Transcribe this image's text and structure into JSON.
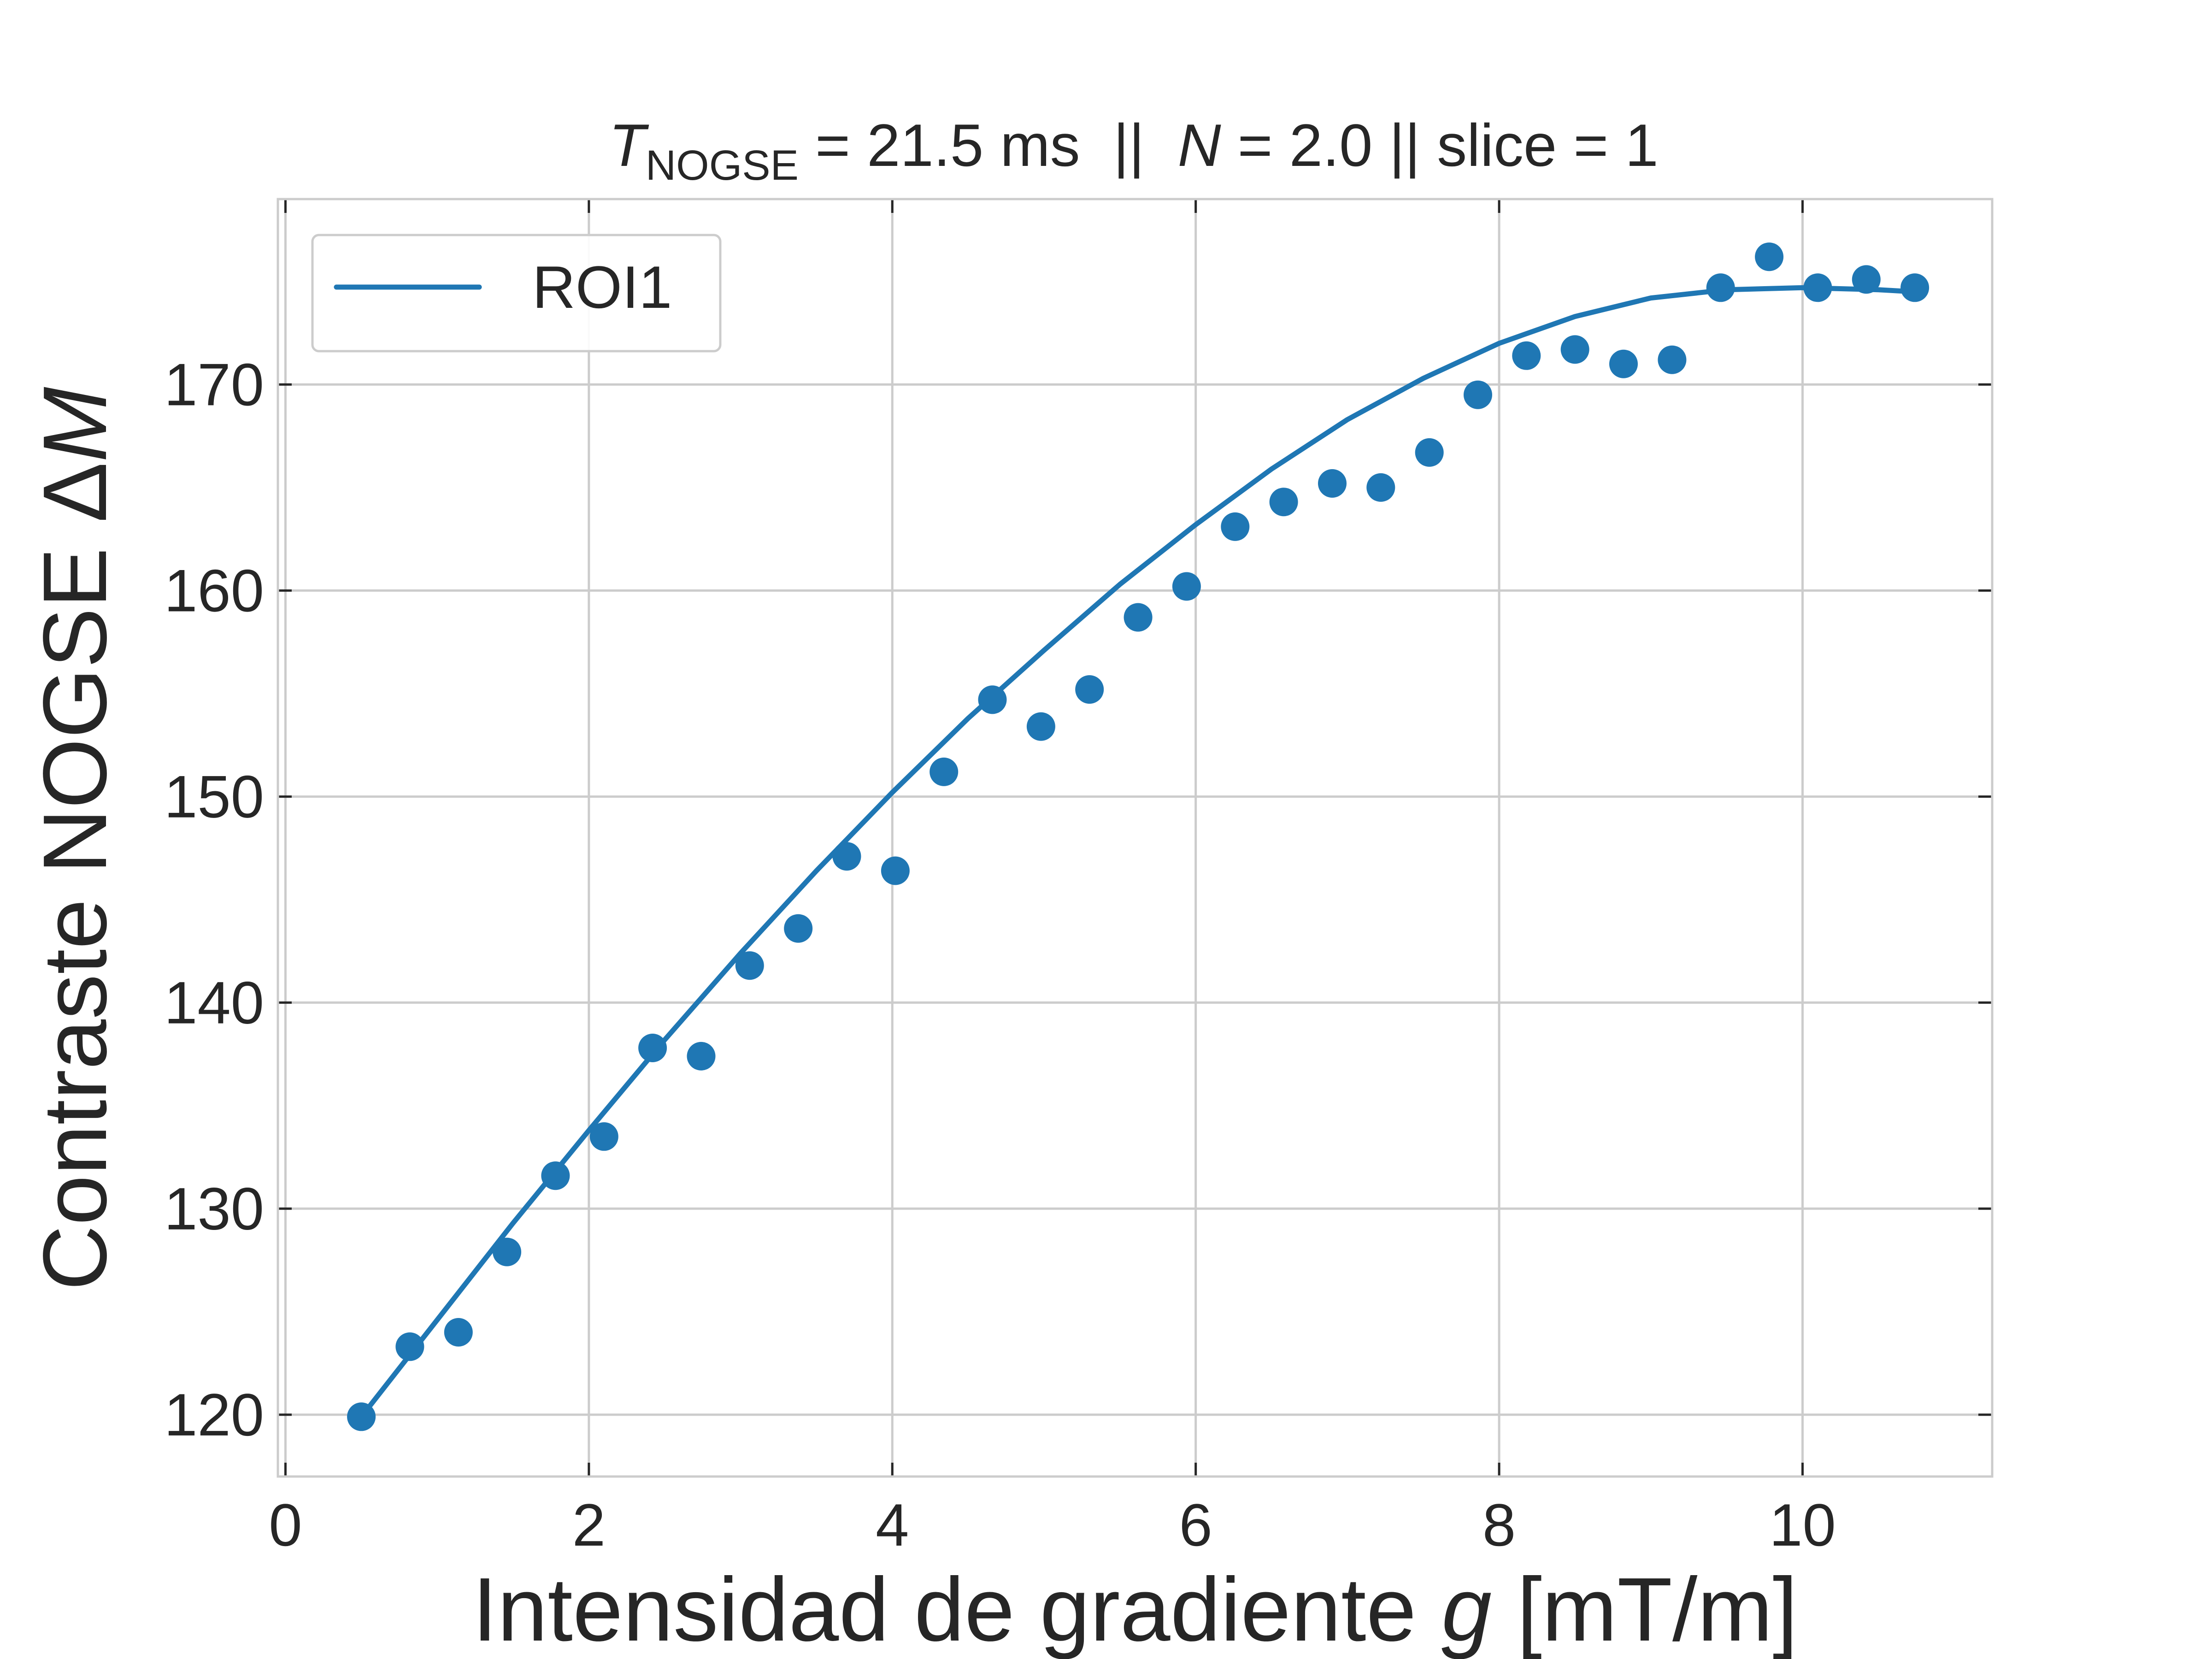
{
  "chart_data": {
    "type": "scatter",
    "title": {
      "t_symbol": "T",
      "t_subscript": "NOGSE",
      "t_rest": " = 21.5 ms  ||  ",
      "n_symbol": "N",
      "n_rest": " = 2.0 || slice = 1"
    },
    "xlabel": {
      "text": "Intensidad de gradiente ",
      "symbol": "g",
      "unit": " [mT/m]"
    },
    "ylabel": {
      "text": "Contraste NOGSE Δ",
      "symbol": "M"
    },
    "xlim": [
      -0.05,
      11.25
    ],
    "ylim": [
      117.0,
      179.0
    ],
    "x_ticks": [
      0,
      2,
      4,
      6,
      8,
      10
    ],
    "x_tick_labels": [
      "0",
      "2",
      "4",
      "6",
      "8",
      "10"
    ],
    "y_ticks": [
      120,
      130,
      140,
      150,
      160,
      170
    ],
    "y_tick_labels": [
      "120",
      "130",
      "140",
      "150",
      "160",
      "170"
    ],
    "grid": true,
    "legend": {
      "placement": "top-left",
      "entries": [
        "ROI1"
      ]
    },
    "series": [
      {
        "name": "ROI1",
        "color": "#1f77b4",
        "points": {
          "x": [
            0.5,
            0.82,
            1.14,
            1.46,
            1.78,
            2.1,
            2.42,
            2.74,
            3.06,
            3.38,
            3.7,
            4.02,
            4.34,
            4.66,
            4.98,
            5.3,
            5.62,
            5.94,
            6.26,
            6.58,
            6.9,
            7.22,
            7.54,
            7.86,
            8.18,
            8.5,
            8.82,
            9.14,
            9.46,
            9.78,
            10.1,
            10.42,
            10.74
          ],
          "y": [
            119.9,
            123.3,
            124.0,
            127.9,
            131.6,
            133.5,
            137.8,
            137.4,
            141.8,
            143.6,
            147.1,
            146.4,
            151.2,
            154.7,
            153.4,
            155.2,
            158.7,
            160.2,
            163.1,
            164.3,
            165.2,
            165.0,
            166.7,
            169.5,
            171.4,
            171.7,
            171.0,
            171.2,
            174.7,
            176.2,
            174.7,
            175.1,
            174.7
          ]
        },
        "fit": {
          "x": [
            0.5,
            1.0,
            1.5,
            2.0,
            2.5,
            3.0,
            3.5,
            4.0,
            4.5,
            5.0,
            5.5,
            6.0,
            6.5,
            7.0,
            7.5,
            8.0,
            8.5,
            9.0,
            9.5,
            10.0,
            10.5,
            10.74
          ],
          "y": [
            119.9,
            124.6,
            129.3,
            133.8,
            138.2,
            142.4,
            146.4,
            150.2,
            153.8,
            157.1,
            160.3,
            163.2,
            165.9,
            168.3,
            170.3,
            172.0,
            173.3,
            174.2,
            174.6,
            174.7,
            174.6,
            174.5
          ]
        }
      }
    ]
  }
}
